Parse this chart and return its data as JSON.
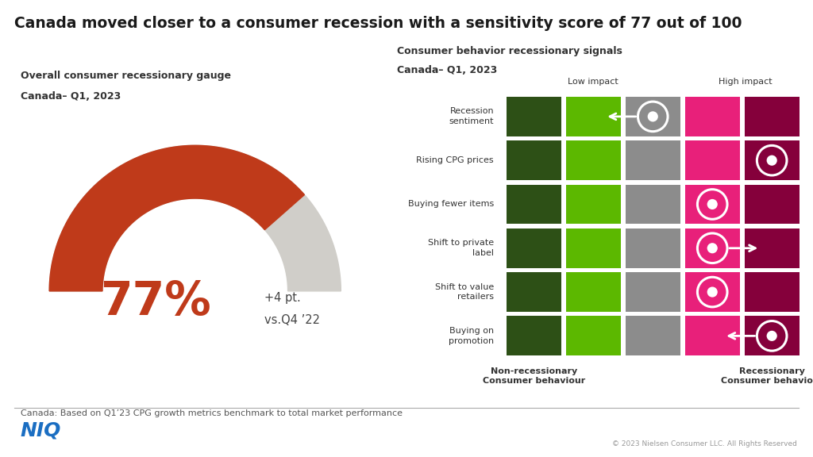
{
  "title": "Canada moved closer to a consumer recession with a sensitivity score of 77 out of 100",
  "gauge_title_line1": "Overall consumer recessionary gauge",
  "gauge_title_line2": "Canada– Q1, 2023",
  "gauge_value": 77,
  "gauge_change_line1": "+4 pt.",
  "gauge_change_line2": "vs.Q4 ’22",
  "gauge_color_active": "#BF3A1A",
  "gauge_color_inactive": "#D0CEC9",
  "right_title_line1": "Consumer behavior recessionary signals",
  "right_title_line2": "Canada– Q1, 2023",
  "col_label_left": "Low impact",
  "col_label_right": "High impact",
  "row_labels": [
    "Recession\nsentiment",
    "Rising CPG prices",
    "Buying fewer items",
    "Shift to private\nlabel",
    "Shift to value\nretailers",
    "Buying on\npromotion"
  ],
  "bottom_label_left_line1": "Non-recessionary",
  "bottom_label_left_line2": "Consumer behaviour",
  "bottom_label_right_line1": "Recessionary",
  "bottom_label_right_line2": "Consumer behaviour",
  "footnote": "Canada: Based on Q1’23 CPG growth metrics benchmark to total market performance",
  "niq_label": "NIQ",
  "niq_color": "#1B6EC2",
  "copyright": "© 2023 Nielsen Consumer LLC. All Rights Reserved",
  "col_colors": [
    "#2D5016",
    "#5CB800",
    "#8C8C8C",
    "#E8207A",
    "#85003B"
  ],
  "bg_color": "#FFFFFF",
  "indicator_positions": [
    3,
    5,
    4,
    4,
    4,
    5
  ],
  "arrow_directions": [
    "left",
    "none",
    "none",
    "right",
    "none",
    "left"
  ],
  "indicator_color": "#FFFFFF"
}
